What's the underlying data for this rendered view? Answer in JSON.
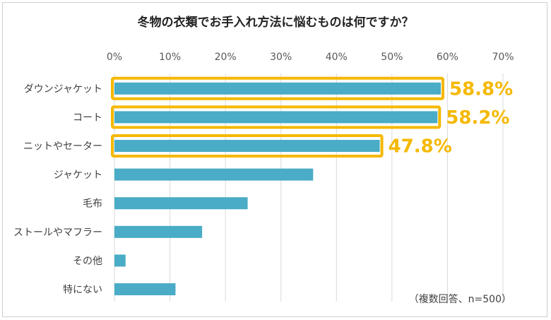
{
  "chart_data": {
    "type": "bar",
    "orientation": "horizontal",
    "title": "冬物の衣類でお手入れ方法に悩むものは何ですか？",
    "categories": [
      "ダウンジャケット",
      "コート",
      "ニットやセーター",
      "ジャケット",
      "毛布",
      "ストールやマフラー",
      "その他",
      "特にない"
    ],
    "values": [
      58.8,
      58.2,
      47.8,
      35.8,
      24.0,
      15.8,
      2.0,
      11.0
    ],
    "highlighted": [
      {
        "index": 0,
        "label": "58.8%"
      },
      {
        "index": 1,
        "label": "58.2%"
      },
      {
        "index": 2,
        "label": "47.8%"
      }
    ],
    "xlim": [
      0,
      70
    ],
    "xticks": [
      0,
      10,
      20,
      30,
      40,
      50,
      60,
      70
    ],
    "xtick_labels": [
      "0%",
      "10%",
      "20%",
      "30%",
      "40%",
      "50%",
      "60%",
      "70%"
    ],
    "xlabel": "",
    "ylabel": "",
    "grid": true,
    "note": "（複数回答、n=500）",
    "colors": {
      "bar": "#4aacc6",
      "highlight": "#f5b800",
      "grid": "#d9d9d9"
    }
  }
}
